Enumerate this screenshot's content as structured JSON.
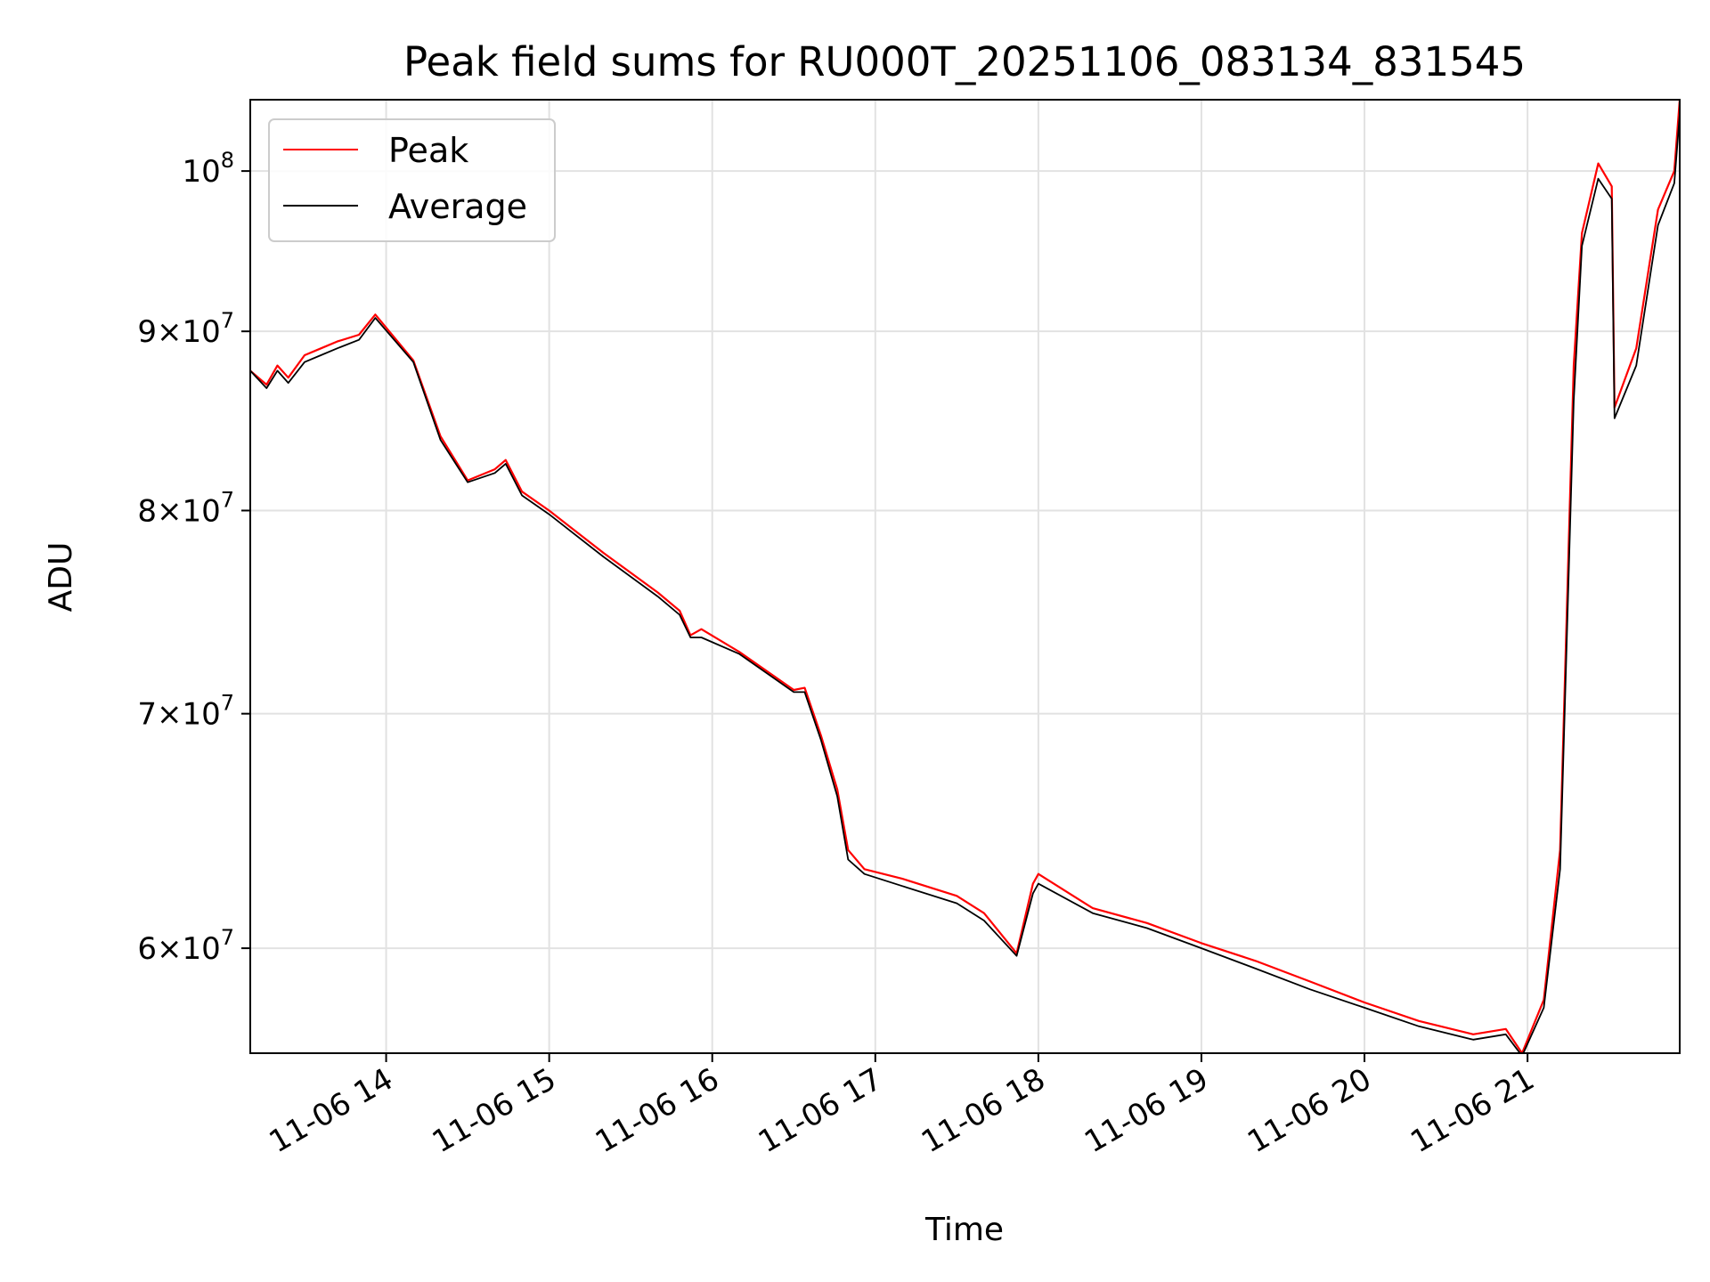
{
  "chart_data": {
    "type": "line",
    "title": "Peak field sums for RU000T_20251106_083134_831545",
    "xlabel": "Time",
    "ylabel": "ADU",
    "y_scale": "log",
    "ylim": [
      56000000,
      104800000
    ],
    "xlim": [
      "11-06 13:10",
      "11-06 21:56"
    ],
    "grid": true,
    "legend_position": "top-left",
    "x_ticks": [
      {
        "value": "11-06 14:00",
        "label": "11-06 14"
      },
      {
        "value": "11-06 15:00",
        "label": "11-06 15"
      },
      {
        "value": "11-06 16:00",
        "label": "11-06 16"
      },
      {
        "value": "11-06 17:00",
        "label": "11-06 17"
      },
      {
        "value": "11-06 18:00",
        "label": "11-06 18"
      },
      {
        "value": "11-06 19:00",
        "label": "11-06 19"
      },
      {
        "value": "11-06 20:00",
        "label": "11-06 20"
      },
      {
        "value": "11-06 21:00",
        "label": "11-06 21"
      }
    ],
    "y_ticks": [
      {
        "value": 60000000,
        "mant": "6",
        "exp": "7"
      },
      {
        "value": 70000000,
        "mant": "7",
        "exp": "7"
      },
      {
        "value": 80000000,
        "mant": "8",
        "exp": "7"
      },
      {
        "value": 90000000,
        "mant": "9",
        "exp": "7"
      },
      {
        "value": 100000000,
        "mant": "",
        "exp": "8"
      }
    ],
    "series": [
      {
        "name": "Peak",
        "color": "#ff0000",
        "x": [
          "11-06 13:10",
          "11-06 13:16",
          "11-06 13:20",
          "11-06 13:24",
          "11-06 13:30",
          "11-06 13:36",
          "11-06 13:42",
          "11-06 13:50",
          "11-06 13:56",
          "11-06 14:10",
          "11-06 14:20",
          "11-06 14:30",
          "11-06 14:40",
          "11-06 14:44",
          "11-06 14:50",
          "11-06 15:00",
          "11-06 15:20",
          "11-06 15:40",
          "11-06 15:48",
          "11-06 15:52",
          "11-06 15:56",
          "11-06 16:10",
          "11-06 16:30",
          "11-06 16:34",
          "11-06 16:40",
          "11-06 16:46",
          "11-06 16:50",
          "11-06 16:56",
          "11-06 17:10",
          "11-06 17:30",
          "11-06 17:40",
          "11-06 17:52",
          "11-06 17:58",
          "11-06 18:00",
          "11-06 18:20",
          "11-06 18:40",
          "11-06 19:00",
          "11-06 19:20",
          "11-06 19:40",
          "11-06 20:00",
          "11-06 20:20",
          "11-06 20:40",
          "11-06 20:52",
          "11-06 20:58",
          "11-06 21:06",
          "11-06 21:12",
          "11-06 21:17",
          "11-06 21:20",
          "11-06 21:26",
          "11-06 21:31",
          "11-06 21:32",
          "11-06 21:40",
          "11-06 21:48",
          "11-06 21:54",
          "11-06 21:56"
        ],
        "y": [
          87700000,
          86900000,
          88000000,
          87300000,
          88600000,
          89000000,
          89400000,
          89800000,
          91000000,
          88300000,
          84000000,
          81600000,
          82200000,
          82700000,
          81000000,
          80000000,
          77800000,
          75800000,
          74900000,
          73700000,
          74000000,
          72900000,
          71100000,
          71200000,
          69000000,
          66600000,
          64000000,
          63200000,
          62800000,
          62100000,
          61400000,
          59800000,
          62600000,
          63000000,
          61600000,
          61000000,
          60200000,
          59500000,
          58700000,
          57900000,
          57200000,
          56700000,
          56900000,
          56000000,
          58000000,
          64000000,
          88000000,
          96000000,
          100500000,
          99000000,
          85600000,
          89000000,
          97500000,
          100000000,
          104800000
        ]
      },
      {
        "name": "Average",
        "color": "#000000",
        "x": [
          "11-06 13:10",
          "11-06 13:16",
          "11-06 13:20",
          "11-06 13:24",
          "11-06 13:30",
          "11-06 13:36",
          "11-06 13:42",
          "11-06 13:50",
          "11-06 13:56",
          "11-06 14:10",
          "11-06 14:20",
          "11-06 14:30",
          "11-06 14:40",
          "11-06 14:44",
          "11-06 14:50",
          "11-06 15:00",
          "11-06 15:20",
          "11-06 15:40",
          "11-06 15:48",
          "11-06 15:52",
          "11-06 15:56",
          "11-06 16:10",
          "11-06 16:30",
          "11-06 16:34",
          "11-06 16:40",
          "11-06 16:46",
          "11-06 16:50",
          "11-06 16:56",
          "11-06 17:10",
          "11-06 17:30",
          "11-06 17:40",
          "11-06 17:52",
          "11-06 17:58",
          "11-06 18:00",
          "11-06 18:20",
          "11-06 18:40",
          "11-06 19:00",
          "11-06 19:20",
          "11-06 19:40",
          "11-06 20:00",
          "11-06 20:20",
          "11-06 20:40",
          "11-06 20:52",
          "11-06 20:58",
          "11-06 21:06",
          "11-06 21:12",
          "11-06 21:17",
          "11-06 21:20",
          "11-06 21:26",
          "11-06 21:31",
          "11-06 21:32",
          "11-06 21:40",
          "11-06 21:48",
          "11-06 21:54",
          "11-06 21:56"
        ],
        "y": [
          87700000,
          86700000,
          87700000,
          87000000,
          88200000,
          88600000,
          89000000,
          89500000,
          90800000,
          88200000,
          83800000,
          81500000,
          82000000,
          82500000,
          80800000,
          79800000,
          77600000,
          75600000,
          74700000,
          73600000,
          73600000,
          72800000,
          71000000,
          71000000,
          68800000,
          66300000,
          63600000,
          63000000,
          62500000,
          61800000,
          61100000,
          59700000,
          62200000,
          62600000,
          61400000,
          60800000,
          60000000,
          59200000,
          58400000,
          57700000,
          57000000,
          56500000,
          56700000,
          55900000,
          57700000,
          63200000,
          86000000,
          95200000,
          99500000,
          98200000,
          85000000,
          88000000,
          96500000,
          99200000,
          103800000
        ]
      }
    ]
  }
}
